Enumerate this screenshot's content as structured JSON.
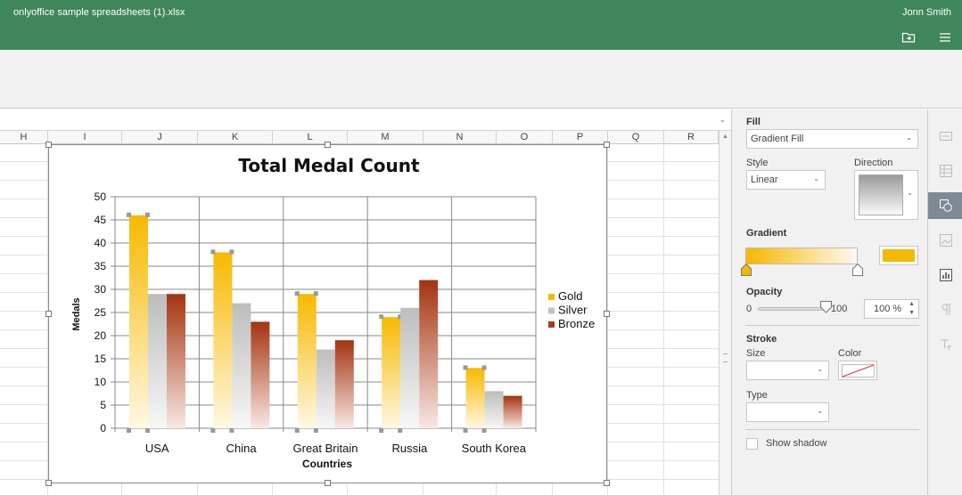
{
  "window": {
    "title": "onlyoffice sample spreadsheets (1).xlsx",
    "user": "Jonn Smith"
  },
  "columns": [
    "H",
    "I",
    "J",
    "K",
    "L",
    "M",
    "N",
    "O",
    "P",
    "Q",
    "R"
  ],
  "chart_data": {
    "type": "bar",
    "title": "Total Medal Count",
    "xlabel": "Countries",
    "ylabel": "Medals",
    "categories": [
      "USA",
      "China",
      "Great Britain",
      "Russia",
      "South Korea"
    ],
    "series": [
      {
        "name": "Gold",
        "values": [
          46,
          38,
          29,
          24,
          13
        ]
      },
      {
        "name": "Silver",
        "values": [
          29,
          27,
          17,
          26,
          8
        ]
      },
      {
        "name": "Bronze",
        "values": [
          29,
          23,
          19,
          32,
          7
        ]
      }
    ],
    "ylim": [
      0,
      50
    ],
    "yticks": [
      "0",
      "5",
      "10",
      "15",
      "20",
      "25",
      "30",
      "35",
      "40",
      "45",
      "50"
    ],
    "grid": true,
    "legend_position": "right",
    "colors": {
      "gold": "#f5b800",
      "silver": "#c2c2c2",
      "bronze": "#a83a18"
    }
  },
  "panel": {
    "fill_label": "Fill",
    "fill_value": "Gradient Fill",
    "style_label": "Style",
    "style_value": "Linear",
    "direction_label": "Direction",
    "gradient_label": "Gradient",
    "gradient_color": "#f5b800",
    "opacity_label": "Opacity",
    "opacity_min": "0",
    "opacity_max": "100",
    "opacity_value": "100 %",
    "opacity_level": 100,
    "stroke_label": "Stroke",
    "size_label": "Size",
    "color_label": "Color",
    "type_label": "Type",
    "shadow_label": "Show shadow"
  }
}
